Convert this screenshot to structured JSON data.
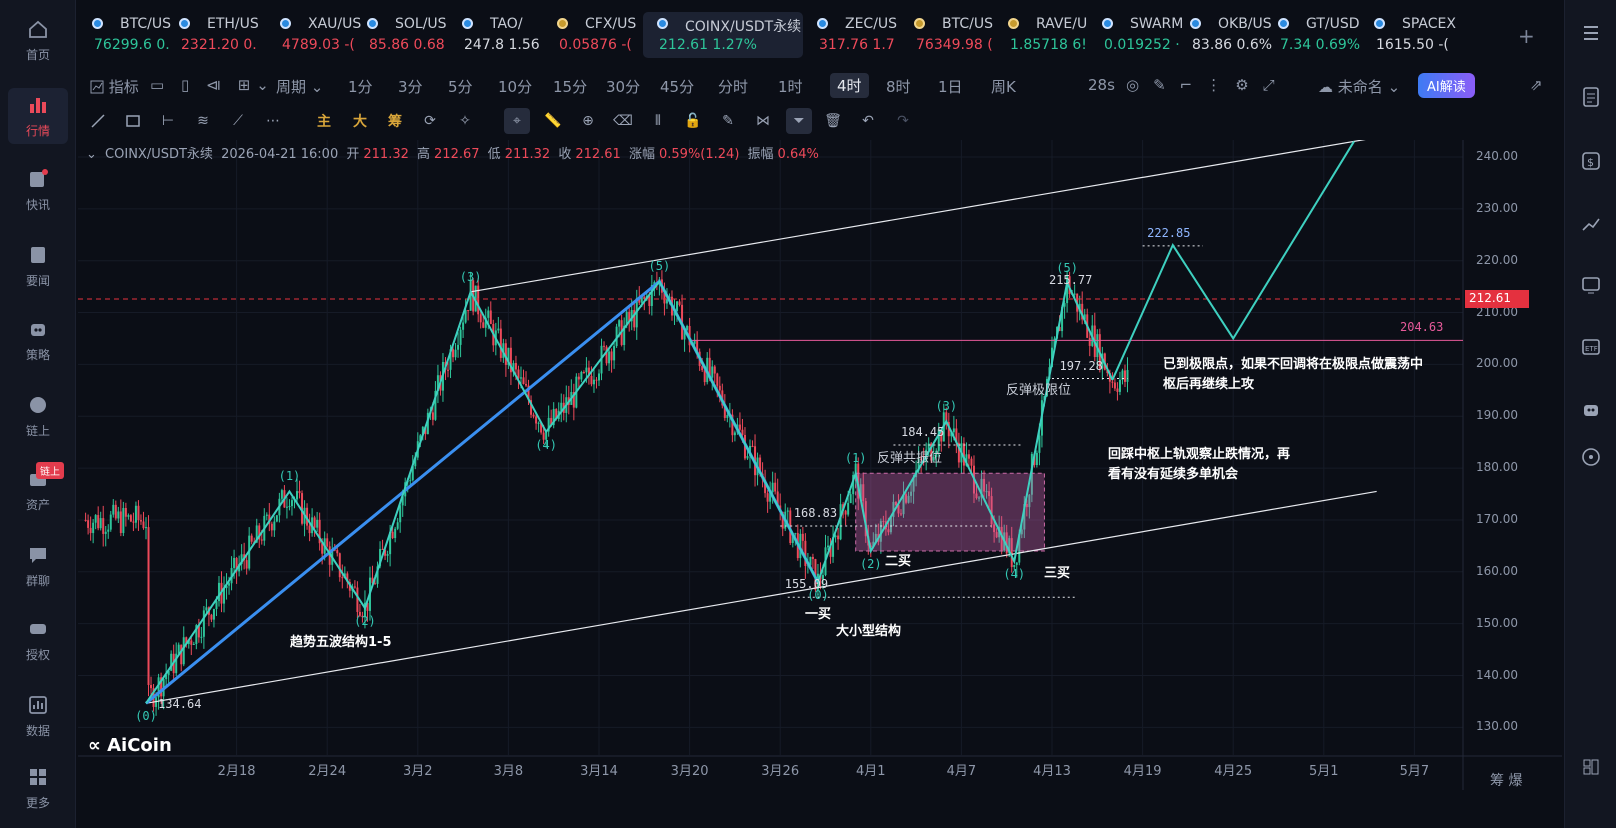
{
  "left_nav": [
    {
      "label": "首页",
      "icon": "home-icon"
    },
    {
      "label": "行情",
      "icon": "market-chart-icon",
      "active": true
    },
    {
      "label": "快讯",
      "icon": "flash-news-icon"
    },
    {
      "label": "要闻",
      "icon": "news-icon"
    },
    {
      "label": "策略",
      "icon": "robot-strategy-icon"
    },
    {
      "label": "链上",
      "icon": "onchain-icon"
    },
    {
      "label": "资产",
      "icon": "wallet-icon",
      "badge": "链上"
    },
    {
      "label": "群聊",
      "icon": "chat-icon"
    },
    {
      "label": "授权",
      "icon": "key-icon"
    },
    {
      "label": "数据",
      "icon": "data-icon"
    },
    {
      "label": "更多",
      "icon": "more-apps-icon"
    }
  ],
  "tickers": [
    {
      "name": "BTC/US",
      "price": "76299.6",
      "change": "0.",
      "dir": "up",
      "dot": "blue"
    },
    {
      "name": "ETH/US",
      "price": "2321.20",
      "change": "0.",
      "dir": "dn",
      "dot": "blue"
    },
    {
      "name": "XAU/US",
      "price": "4789.03",
      "change": "-(",
      "dir": "dn",
      "dot": "blue"
    },
    {
      "name": "SOL/US",
      "price": "85.86",
      "change": "0.68",
      "dir": "dn",
      "dot": "blue"
    },
    {
      "name": "TAO/",
      "price": "247.8",
      "change": "1.56",
      "dir": "neutral",
      "dot": "blue"
    },
    {
      "name": "CFX/US",
      "price": "0.05876",
      "change": "-(",
      "dir": "dn",
      "dot": "gold"
    },
    {
      "name": "COINX/USDT永续",
      "price": "212.61",
      "change": "1.27%",
      "dir": "up",
      "dot": "blue",
      "active": true
    },
    {
      "name": "ZEC/US",
      "price": "317.76",
      "change": "1.7",
      "dir": "dn",
      "dot": "blue"
    },
    {
      "name": "BTC/US",
      "price": "76349.98",
      "change": "(",
      "dir": "dn",
      "dot": "gold"
    },
    {
      "name": "RAVE/U",
      "price": "1.85718",
      "change": "6!",
      "dir": "up",
      "dot": "gold"
    },
    {
      "name": "SWARM",
      "price": "0.019252",
      "change": "·",
      "dir": "up",
      "dot": "blue"
    },
    {
      "name": "OKB/US",
      "price": "83.86",
      "change": "0.6%",
      "dir": "neutral",
      "dot": "blue"
    },
    {
      "name": "GT/USD",
      "price": "7.34",
      "change": "0.69%",
      "dir": "up",
      "dot": "blue"
    },
    {
      "name": "SPACEX",
      "price": "1615.50",
      "change": "-(",
      "dir": "neutral",
      "dot": "blue"
    }
  ],
  "toolbar": {
    "indicator": "指标",
    "period": "周期",
    "intervals": [
      "1分",
      "3分",
      "5分",
      "10分",
      "15分",
      "30分",
      "45分",
      "分时",
      "1时",
      "4时",
      "8时",
      "1日",
      "周K"
    ],
    "active_interval": "4时",
    "countdown": "28s",
    "layout_name": "未命名",
    "ai_label": "AI解读"
  },
  "draw_toolbar": {
    "labels": [
      "主",
      "大",
      "筹"
    ]
  },
  "info_bar": {
    "symbol": "COINX/USDT永续",
    "time": "2026-04-21 16:00",
    "open_label": "开",
    "open": "211.32",
    "high_label": "高",
    "high": "212.67",
    "low_label": "低",
    "low": "211.32",
    "close_label": "收",
    "close": "212.61",
    "chg_label": "涨幅",
    "chg": "0.59%(1.24)",
    "amp_label": "振幅",
    "amp": "0.64%"
  },
  "chart_data": {
    "type": "candlestick",
    "symbol": "COINX/USDT永续",
    "interval": "4时",
    "y_ticks": [
      "240.00",
      "230.00",
      "220.00",
      "210.00",
      "200.00",
      "190.00",
      "180.00",
      "170.00",
      "160.00",
      "150.00",
      "140.00",
      "130.00"
    ],
    "ylim": [
      125,
      244
    ],
    "x_ticks": [
      "2月18",
      "2月24",
      "3月2",
      "3月8",
      "3月14",
      "3月20",
      "3月26",
      "4月1",
      "4月7",
      "4月13",
      "4月19",
      "4月25",
      "5月1",
      "5月7"
    ],
    "last_price": "212.61",
    "level_204": "204.63",
    "wave_path_actual": [
      [
        0,
        134.64
      ],
      [
        9.5,
        175.5
      ],
      [
        14.5,
        153
      ],
      [
        21.5,
        214
      ],
      [
        26.5,
        187
      ],
      [
        34,
        216
      ],
      [
        44.5,
        158
      ],
      [
        47,
        179
      ],
      [
        48,
        164
      ],
      [
        53,
        189
      ],
      [
        57.5,
        162
      ],
      [
        61,
        215.77
      ],
      [
        64,
        197
      ]
    ],
    "wave_path_projection": [
      [
        64,
        197
      ],
      [
        68,
        223
      ],
      [
        72,
        205
      ],
      [
        80,
        243
      ]
    ],
    "trend_line_blue": [
      [
        0,
        134.64
      ],
      [
        34,
        216
      ],
      [
        44.5,
        158
      ]
    ],
    "channel_upper": [
      [
        21.5,
        214
      ],
      [
        82,
        244
      ]
    ],
    "channel_lower": [
      [
        0,
        134.64
      ],
      [
        81.5,
        175.5
      ]
    ],
    "wave_labels": [
      {
        "text": "(0)",
        "x": 0,
        "y": 134.64,
        "pos": "below"
      },
      {
        "text": "(1)",
        "x": 9.5,
        "y": 175.5,
        "pos": "above"
      },
      {
        "text": "(2)",
        "x": 14.5,
        "y": 153,
        "pos": "below"
      },
      {
        "text": "(3)",
        "x": 21.5,
        "y": 214,
        "pos": "above"
      },
      {
        "text": "(4)",
        "x": 26.5,
        "y": 187,
        "pos": "below"
      },
      {
        "text": "(5)",
        "x": 34,
        "y": 216,
        "pos": "above"
      },
      {
        "text": "(0)",
        "x": 44.5,
        "y": 158,
        "pos": "below"
      },
      {
        "text": "(1)",
        "x": 47,
        "y": 179,
        "pos": "above"
      },
      {
        "text": "(2)",
        "x": 48,
        "y": 164,
        "pos": "below"
      },
      {
        "text": "(3)",
        "x": 53,
        "y": 189,
        "pos": "above"
      },
      {
        "text": "(4)",
        "x": 57.5,
        "y": 162,
        "pos": "below"
      },
      {
        "text": "(5)",
        "x": 61,
        "y": 215.77,
        "pos": "above"
      }
    ],
    "levels": [
      {
        "text": "134.64",
        "value": 134.64
      },
      {
        "text": "155.09",
        "value": 155.09
      },
      {
        "text": "168.83",
        "value": 168.83
      },
      {
        "text": "184.45",
        "value": 184.45
      },
      {
        "text": "197.28",
        "value": 197.28
      },
      {
        "text": "215.77",
        "value": 215.77
      },
      {
        "text": "222.85",
        "value": 222.85
      }
    ],
    "zone": {
      "x_from": 47,
      "x_to": 59.5,
      "y_low": 164,
      "y_high": 179
    },
    "annotations": [
      "趋势五波结构1-5",
      "一买",
      "大小型结构",
      "二买",
      "三买",
      "反弹共振位",
      "反弹极限位",
      "回踩中枢上轨观察止跌情况，再\n看有没有延续多单机会",
      "已到极限点，如果不回调将在极限点做震荡中\n枢后再继续上攻"
    ]
  },
  "brand": "AiCoin",
  "corner_text": "筹 爆",
  "colors": {
    "up": "#2ec59a",
    "down": "#ee4a5a",
    "wave": "#3ed0c0",
    "trend": "#3a8ff0",
    "price_line": "#e4313f",
    "level_204": "#e65a9a"
  }
}
